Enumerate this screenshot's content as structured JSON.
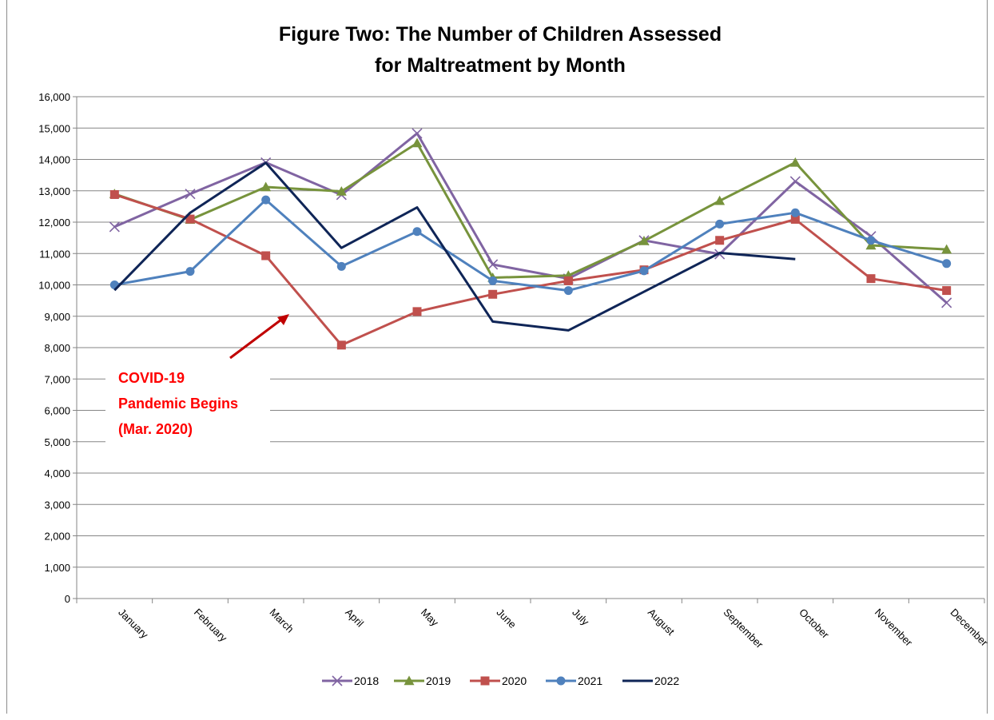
{
  "chart_data": {
    "type": "line",
    "title_lines": [
      "Figure Two: The Number of Children Assessed",
      "for Maltreatment by Month"
    ],
    "categories": [
      "January",
      "February",
      "March",
      "April",
      "May",
      "June",
      "July",
      "August",
      "September",
      "October",
      "November",
      "December"
    ],
    "ylim": [
      0,
      16000
    ],
    "ytick_labels": [
      "0",
      "1,000",
      "2,000",
      "3,000",
      "4,000",
      "5,000",
      "6,000",
      "7,000",
      "8,000",
      "9,000",
      "10,000",
      "11,000",
      "12,000",
      "13,000",
      "14,000",
      "15,000",
      "16,000"
    ],
    "yticks": [
      0,
      1000,
      2000,
      3000,
      4000,
      5000,
      6000,
      7000,
      8000,
      9000,
      10000,
      11000,
      12000,
      13000,
      14000,
      15000,
      16000
    ],
    "grid": true,
    "legend_position": "bottom",
    "series": [
      {
        "name": "2018",
        "color": "#8064a2",
        "marker": "x",
        "values": [
          11850,
          12900,
          13900,
          12870,
          14830,
          10650,
          10200,
          11420,
          10980,
          13300,
          11550,
          9430
        ]
      },
      {
        "name": "2019",
        "color": "#77933c",
        "marker": "triangle",
        "values": [
          12900,
          12080,
          13120,
          12980,
          14520,
          10230,
          10300,
          11400,
          12680,
          13900,
          11260,
          11130
        ]
      },
      {
        "name": "2020",
        "color": "#c0504d",
        "marker": "square",
        "values": [
          12880,
          12100,
          10930,
          8080,
          9150,
          9700,
          10130,
          10480,
          11420,
          12090,
          10200,
          9820
        ]
      },
      {
        "name": "2021",
        "color": "#4f81bd",
        "marker": "circle",
        "values": [
          10000,
          10430,
          12710,
          10590,
          11700,
          10130,
          9820,
          10450,
          11940,
          12300,
          11420,
          10680
        ]
      },
      {
        "name": "2022",
        "color": "#0f2557",
        "marker": "none",
        "values": [
          9830,
          12300,
          13890,
          11180,
          12470,
          8830,
          8550,
          9780,
          11020,
          10820,
          null,
          null
        ]
      }
    ],
    "annotation": {
      "lines": [
        "COVID-19",
        "Pandemic Begins",
        "(Mar. 2020)"
      ],
      "color": "#ff0000"
    }
  }
}
